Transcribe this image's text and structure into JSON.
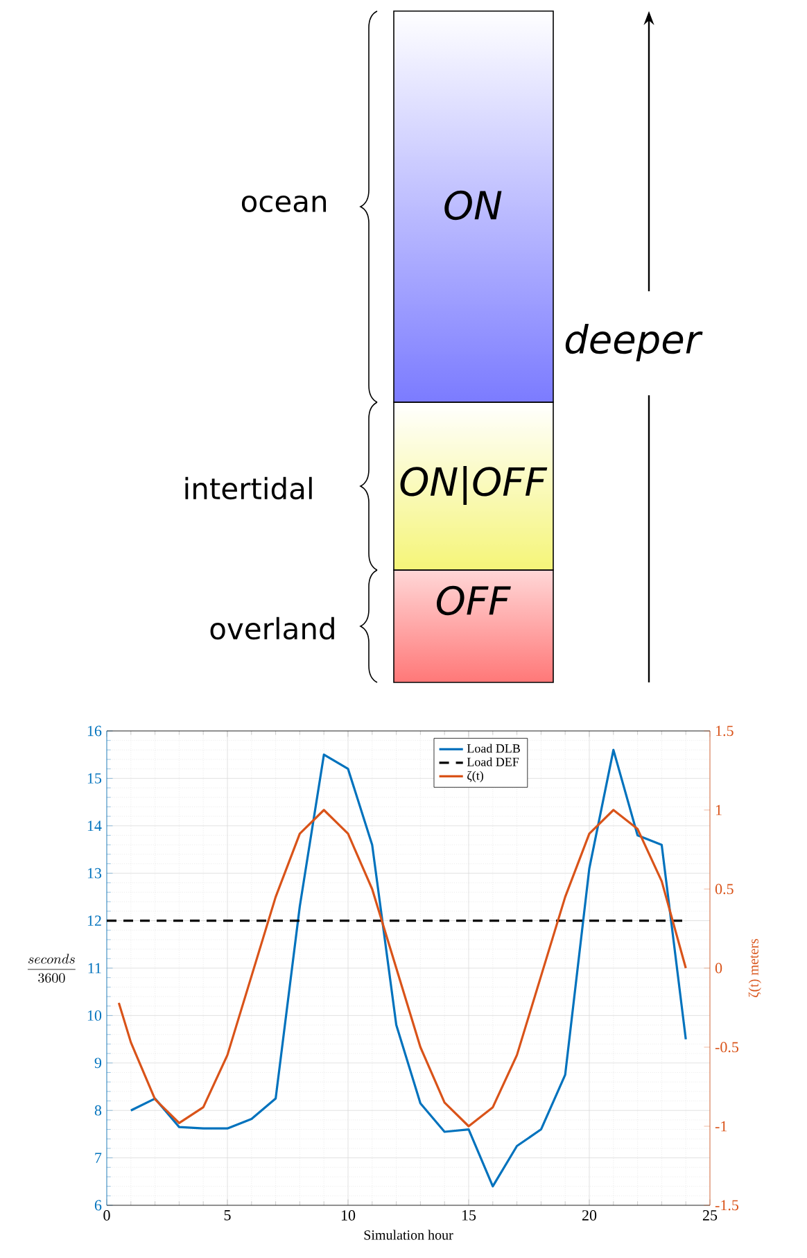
{
  "chart_data": [
    {
      "type": "other",
      "annotations": [
        "ocean",
        "intertidal",
        "overland",
        "ON",
        "ON|OFF",
        "OFF",
        "deeper"
      ]
    },
    {
      "type": "line",
      "xlabel": "Simulation hour",
      "ylabel": "\\frac{seconds}{3600}",
      "y2label": "ζ(t) meters",
      "xlim": [
        0,
        25
      ],
      "xticks": [
        0,
        5,
        10,
        15,
        20,
        25
      ],
      "ylim": [
        6,
        16
      ],
      "yticks": [
        6,
        7,
        8,
        9,
        10,
        11,
        12,
        13,
        14,
        15,
        16
      ],
      "y2lim": [
        -1.5,
        1.5
      ],
      "y2ticks": [
        {
          "value": -1.5,
          "label": "-1.5"
        },
        {
          "value": -1,
          "label": "-1"
        },
        {
          "value": -0.5,
          "label": "-0.5"
        },
        {
          "value": 0,
          "label": "0"
        },
        {
          "value": 0.5,
          "label": "0.5"
        },
        {
          "value": 1,
          "label": "1"
        },
        {
          "value": 1.5,
          "label": "1.5"
        }
      ],
      "grid": true,
      "legend": "top",
      "series": [
        {
          "name": "Load DLB",
          "color": "#0072bd",
          "x": [
            1,
            2,
            3,
            4,
            5,
            6,
            7,
            8,
            9,
            10,
            11,
            12,
            13,
            14,
            15,
            16,
            17,
            18,
            19,
            20,
            21,
            22,
            23,
            24
          ],
          "values": [
            8.0,
            8.25,
            7.65,
            7.62,
            7.62,
            7.82,
            8.25,
            12.3,
            15.5,
            15.2,
            13.6,
            9.8,
            8.15,
            7.55,
            7.6,
            6.4,
            7.25,
            7.6,
            8.75,
            13.1,
            15.6,
            13.8,
            13.6,
            9.5
          ]
        },
        {
          "name": "Load DEF",
          "color": "#000000",
          "line_style": "dashed",
          "x": [
            0,
            24
          ],
          "values": [
            12,
            12
          ]
        },
        {
          "name": "ζ(t)",
          "color": "#d95319",
          "axis": "y2",
          "x": [
            0.5,
            1,
            2,
            3,
            4,
            5,
            6,
            7,
            8,
            9,
            10,
            11,
            12,
            13,
            14,
            15,
            16,
            17,
            18,
            19,
            20,
            21,
            22,
            23,
            24
          ],
          "values": [
            -0.22,
            -0.47,
            -0.83,
            -0.98,
            -0.88,
            -0.55,
            -0.05,
            0.45,
            0.85,
            1.0,
            0.85,
            0.5,
            0.0,
            -0.5,
            -0.85,
            -1.0,
            -0.88,
            -0.55,
            -0.05,
            0.45,
            0.85,
            1.0,
            0.88,
            0.55,
            0.0
          ]
        }
      ]
    }
  ]
}
